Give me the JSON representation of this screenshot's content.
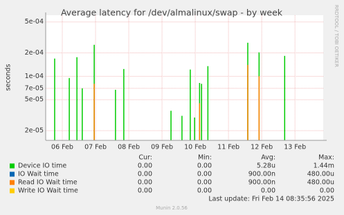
{
  "chart_data": {
    "type": "bar",
    "title": "Average latency for /dev/almalinux/swap - by week",
    "y_label": "seconds",
    "side_text": "RRDTOOL / TOBI OETIKER",
    "log_scale": true,
    "grid": true,
    "x": [
      5.77,
      6.21,
      6.44,
      6.6,
      6.96,
      7.6,
      7.85,
      9.27,
      9.6,
      9.85,
      9.98,
      10.13,
      10.19,
      10.38,
      11.58,
      11.92,
      12.69
    ],
    "xlim": [
      5.5,
      13.85
    ],
    "xticks": [
      {
        "value": 6,
        "label": "06 Feb"
      },
      {
        "value": 7,
        "label": "07 Feb"
      },
      {
        "value": 8,
        "label": "08 Feb"
      },
      {
        "value": 9,
        "label": "09 Feb"
      },
      {
        "value": 10,
        "label": "10 Feb"
      },
      {
        "value": 11,
        "label": "11 Feb"
      },
      {
        "value": 12,
        "label": "12 Feb"
      },
      {
        "value": 13,
        "label": "13 Feb"
      }
    ],
    "ylim": [
      1.5e-05,
      0.00061
    ],
    "yticks": [
      {
        "value": 2e-05,
        "label": "2e-05"
      },
      {
        "value": 5e-05,
        "label": "5e-05"
      },
      {
        "value": 7e-05,
        "label": "7e-05"
      },
      {
        "value": 0.0001,
        "label": "1e-04"
      },
      {
        "value": 0.0002,
        "label": "2e-04"
      },
      {
        "value": 0.0005,
        "label": "5e-04"
      }
    ],
    "stats_header": [
      "Cur:",
      "Min:",
      "Avg:",
      "Max:"
    ],
    "series": [
      {
        "name": "Device IO time",
        "color": "#00cc00",
        "stats": [
          "0.00",
          "0.00",
          "5.28u",
          "1.44m"
        ],
        "values": [
          0.000169,
          9.5e-05,
          0.000176,
          7e-05,
          0.000254,
          6.7e-05,
          0.000124,
          3.6e-05,
          3.1e-05,
          0.000122,
          2.95e-05,
          8.2e-05,
          8e-05,
          0.000135,
          0.00027,
          0.000203,
          0.000183
        ]
      },
      {
        "name": "IO Wait time",
        "color": "#0066b3",
        "stats": [
          "0.00",
          "0.00",
          "900.00n",
          "480.00u"
        ],
        "values": [
          null,
          null,
          null,
          null,
          null,
          null,
          null,
          null,
          null,
          null,
          null,
          null,
          null,
          null,
          null,
          null,
          null
        ]
      },
      {
        "name": "Read IO Wait time",
        "color": "#ff8000",
        "stats": [
          "0.00",
          "0.00",
          "900.00n",
          "480.00u"
        ],
        "values": [
          null,
          null,
          null,
          null,
          8e-05,
          null,
          null,
          null,
          null,
          null,
          null,
          4.5e-05,
          null,
          null,
          0.00014,
          0.0001,
          null
        ]
      },
      {
        "name": "Write IO Wait time",
        "color": "#ffcc00",
        "stats": [
          "0.00",
          "0.00",
          "0.00",
          "0.00"
        ],
        "values": [
          null,
          null,
          null,
          null,
          null,
          null,
          null,
          null,
          null,
          null,
          null,
          null,
          null,
          null,
          null,
          null,
          null
        ]
      }
    ],
    "last_update": "Last update: Fri Feb 14 08:35:56 2025",
    "footer": "Munin 2.0.56"
  }
}
